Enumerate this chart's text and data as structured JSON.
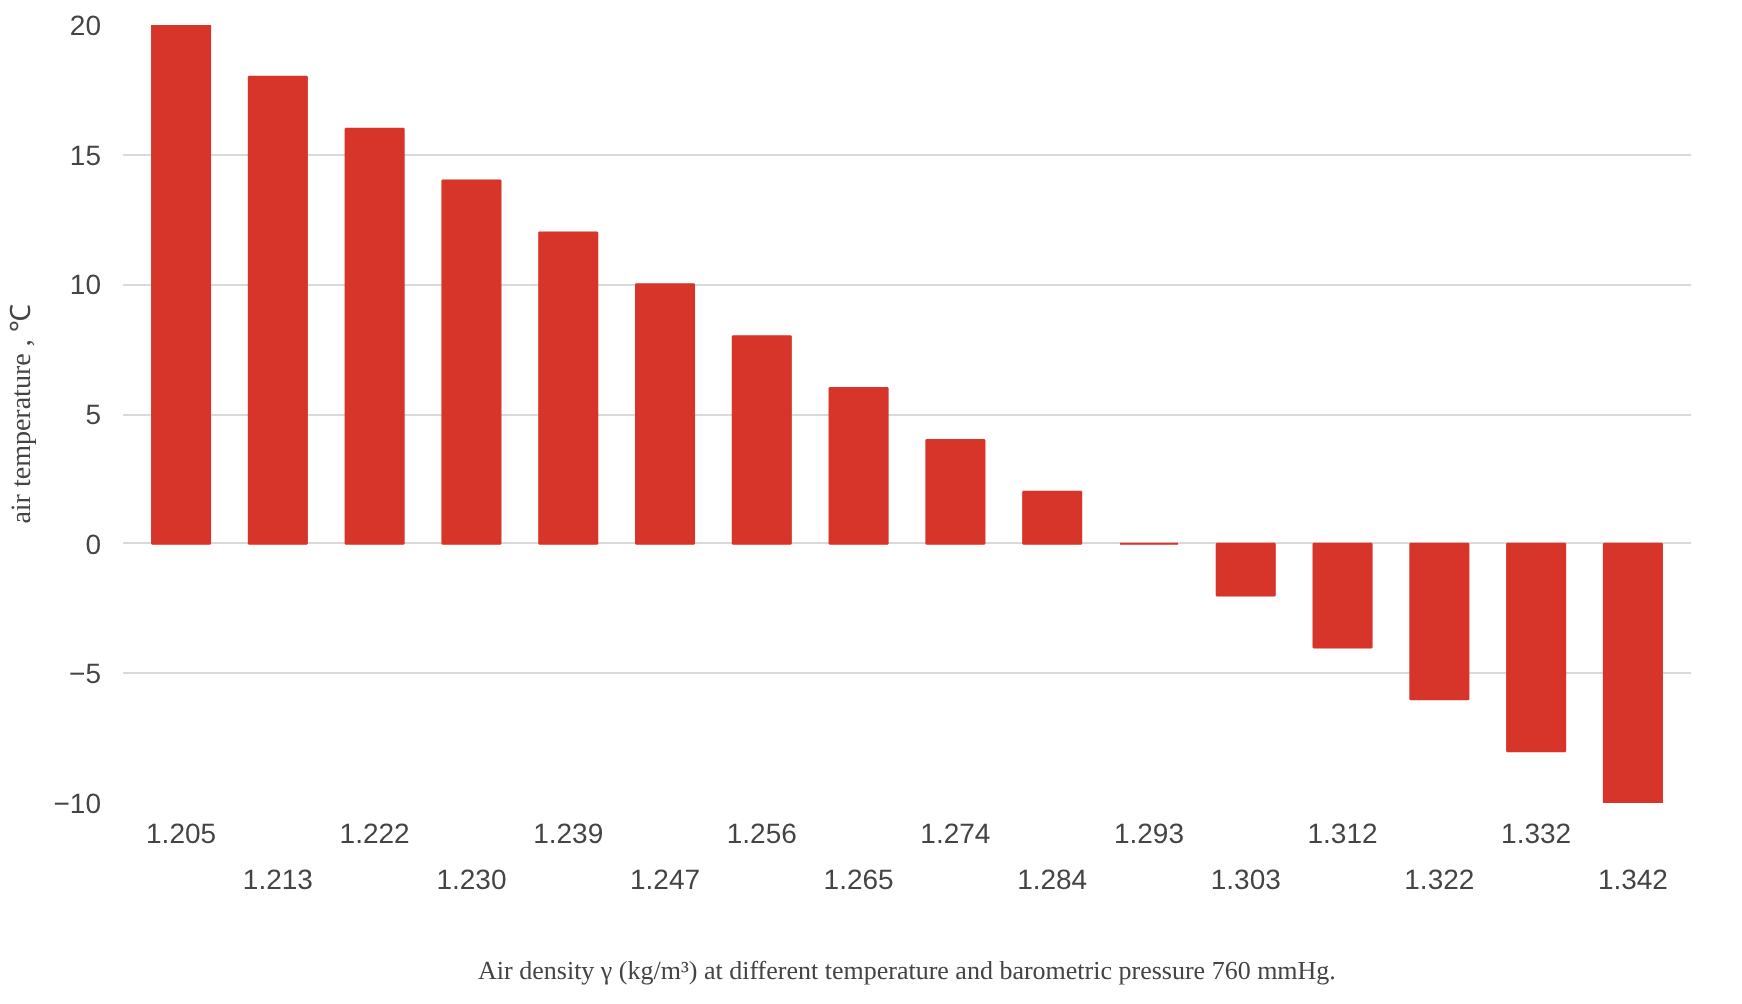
{
  "chart_data": {
    "type": "bar",
    "xlabel": "Air density γ (kg/m³) at different temperature and barometric pressure 760 mmHg.",
    "ylabel": "air temperature , ℃",
    "categories": [
      "1.205",
      "1.213",
      "1.222",
      "1.230",
      "1.239",
      "1.247",
      "1.256",
      "1.265",
      "1.274",
      "1.284",
      "1.293",
      "1.303",
      "1.312",
      "1.322",
      "1.332",
      "1.342"
    ],
    "values": [
      20,
      18,
      16,
      14,
      12,
      10,
      8,
      6,
      4,
      2,
      0,
      -2,
      -4,
      -6,
      -8,
      -10
    ],
    "color": "#d7342a",
    "ylim": [
      -10,
      20
    ],
    "yticks": [
      -10,
      -5,
      0,
      5,
      10,
      15,
      20
    ],
    "grid": "y"
  }
}
